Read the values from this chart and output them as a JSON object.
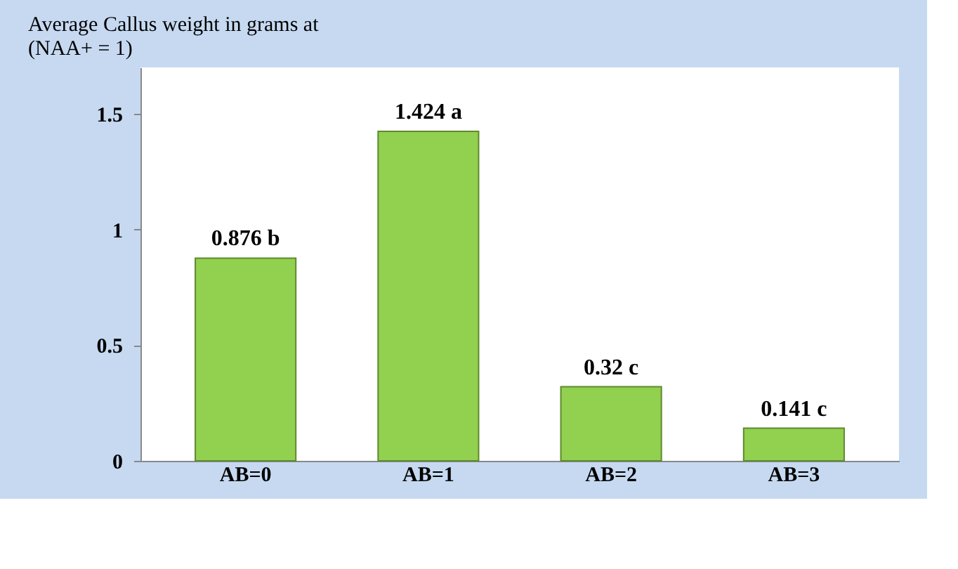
{
  "chart_data": {
    "type": "bar",
    "title": "Average Callus weight in grams at\n(NAA+ = 1)",
    "categories": [
      "AB=0",
      "AB=1",
      "AB=2",
      "AB=3"
    ],
    "series": [
      {
        "color": "#92d050",
        "values": [
          0.876,
          1.424,
          0.32,
          0.141
        ],
        "value_labels": [
          "0.876 b",
          "1.424 a",
          "0.32 c",
          "0.141 c"
        ]
      }
    ],
    "ylim": [
      0,
      1.7
    ],
    "yticks": [
      0,
      0.5,
      1,
      1.5
    ],
    "grid": false
  }
}
